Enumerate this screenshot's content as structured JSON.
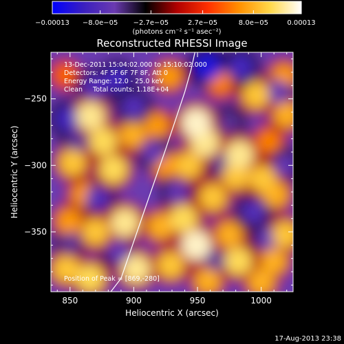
{
  "chart_data": {
    "type": "heatmap",
    "title": "Reconstructed RHESSI Image",
    "xlabel": "Heliocentric X (arcsec)",
    "ylabel": "Heliocentric Y (arcsec)",
    "xlim": [
      835,
      1025
    ],
    "ylim": [
      -395,
      -215
    ],
    "x_ticks": [
      850,
      900,
      950,
      1000
    ],
    "x_tick_labels": [
      "850",
      "900",
      "950",
      "1000"
    ],
    "y_ticks": [
      -250,
      -300,
      -350
    ],
    "y_tick_labels": [
      "−250",
      "−300",
      "−350"
    ],
    "colorbar": {
      "ticks": [
        -0.00013,
        -8e-05,
        -2.7e-05,
        2.7e-05,
        8e-05,
        0.00013
      ],
      "tick_labels": [
        "−0.00013",
        "−8.0e−05",
        "−2.7e−05",
        "2.7e−05",
        "8.0e−05",
        "0.00013"
      ],
      "units_label": "(photons cm⁻² s⁻¹ asec⁻²)",
      "stops": [
        "#0000ff",
        "#3a1fbf",
        "#6a3ab0",
        "#000000",
        "#b00000",
        "#ff3000",
        "#ff9000",
        "#ffd84a",
        "#ffffff"
      ],
      "lim": [
        -0.00013,
        0.00013
      ]
    },
    "annotations": [
      "13-Dec-2011 15:04:02.000 to 15:10:02.000",
      "Detectors: 4F 5F 6F 7F 8F, Att 0",
      "Energy Range: 12.0 - 25.0 keV",
      "Clean     Total counts: 1.18E+04"
    ],
    "peak_label": "Position of Peak = [869,-280]",
    "limb_curve": {
      "x": [
        948,
        945,
        940,
        933,
        925,
        917,
        908,
        899,
        890,
        882
      ],
      "y": [
        -215,
        -228,
        -245,
        -265,
        -288,
        -310,
        -335,
        -360,
        -385,
        -395
      ]
    },
    "blobs": [
      {
        "x": 866,
        "y": -263,
        "v": 0.00011
      },
      {
        "x": 876,
        "y": -282,
        "v": 0.0001
      },
      {
        "x": 852,
        "y": -298,
        "v": 9e-05
      },
      {
        "x": 884,
        "y": -303,
        "v": 0.0001
      },
      {
        "x": 899,
        "y": -277,
        "v": 8e-05
      },
      {
        "x": 918,
        "y": -270,
        "v": 7e-05
      },
      {
        "x": 949,
        "y": -268,
        "v": 0.00012
      },
      {
        "x": 956,
        "y": -283,
        "v": 0.00011
      },
      {
        "x": 943,
        "y": -300,
        "v": 9e-05
      },
      {
        "x": 983,
        "y": -292,
        "v": 0.00011
      },
      {
        "x": 980,
        "y": -308,
        "v": 9e-05
      },
      {
        "x": 1001,
        "y": -310,
        "v": 9e-05
      },
      {
        "x": 962,
        "y": -324,
        "v": 9e-05
      },
      {
        "x": 939,
        "y": -340,
        "v": 0.0001
      },
      {
        "x": 921,
        "y": -346,
        "v": 8e-05
      },
      {
        "x": 949,
        "y": -360,
        "v": 0.00012
      },
      {
        "x": 975,
        "y": -352,
        "v": 8e-05
      },
      {
        "x": 1011,
        "y": -322,
        "v": 8e-05
      },
      {
        "x": 1019,
        "y": -352,
        "v": 9e-05
      },
      {
        "x": 1010,
        "y": -372,
        "v": 8e-05
      },
      {
        "x": 893,
        "y": -343,
        "v": 0.00011
      },
      {
        "x": 870,
        "y": -350,
        "v": 9e-05
      },
      {
        "x": 849,
        "y": -342,
        "v": 7e-05
      },
      {
        "x": 847,
        "y": -378,
        "v": 9e-05
      },
      {
        "x": 866,
        "y": -385,
        "v": 0.0001
      },
      {
        "x": 902,
        "y": -378,
        "v": 0.00011
      },
      {
        "x": 929,
        "y": -375,
        "v": 9e-05
      },
      {
        "x": 958,
        "y": -387,
        "v": 8e-05
      },
      {
        "x": 982,
        "y": -372,
        "v": 0.0001
      },
      {
        "x": 1000,
        "y": -388,
        "v": 8e-05
      },
      {
        "x": 846,
        "y": -232,
        "v": 5e-05
      },
      {
        "x": 928,
        "y": -233,
        "v": 7e-05
      },
      {
        "x": 996,
        "y": -247,
        "v": 9e-05
      },
      {
        "x": 1020,
        "y": -262,
        "v": 8e-05
      },
      {
        "x": 1006,
        "y": -282,
        "v": 6e-05
      },
      {
        "x": 925,
        "y": -300,
        "v": 7e-05
      },
      {
        "x": 861,
        "y": -322,
        "v": 7e-05
      },
      {
        "x": 1018,
        "y": -233,
        "v": 7e-05
      },
      {
        "x": 968,
        "y": -238,
        "v": 6e-05
      },
      {
        "x": 958,
        "y": -226,
        "v": -0.00011
      },
      {
        "x": 984,
        "y": -226,
        "v": -9e-05
      },
      {
        "x": 1013,
        "y": -245,
        "v": -7e-05
      },
      {
        "x": 887,
        "y": -235,
        "v": -9e-05
      },
      {
        "x": 869,
        "y": -241,
        "v": -8e-05
      },
      {
        "x": 848,
        "y": -265,
        "v": -9e-05
      },
      {
        "x": 900,
        "y": -256,
        "v": -8e-05
      },
      {
        "x": 915,
        "y": -290,
        "v": -7e-05
      },
      {
        "x": 970,
        "y": -300,
        "v": -6e-05
      },
      {
        "x": 934,
        "y": -320,
        "v": -7e-05
      },
      {
        "x": 872,
        "y": -325,
        "v": -8e-05
      },
      {
        "x": 994,
        "y": -335,
        "v": -8e-05
      },
      {
        "x": 1019,
        "y": -300,
        "v": -7e-05
      },
      {
        "x": 1005,
        "y": -355,
        "v": -7e-05
      },
      {
        "x": 850,
        "y": -358,
        "v": -6e-05
      },
      {
        "x": 888,
        "y": -365,
        "v": -7e-05
      },
      {
        "x": 964,
        "y": -372,
        "v": -6e-05
      },
      {
        "x": 975,
        "y": -268,
        "v": -6e-05
      },
      {
        "x": 855,
        "y": -283,
        "v": -6e-05
      }
    ]
  },
  "footer": {
    "date_stamp": "17-Aug-2013 23:38"
  }
}
